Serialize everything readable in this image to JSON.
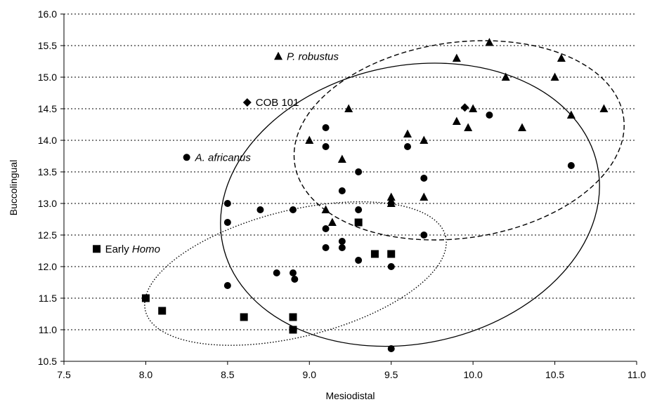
{
  "chart_data": {
    "type": "scatter",
    "xlabel": "Mesiodistal",
    "ylabel": "Buccolingual",
    "xlim": [
      7.5,
      11.0
    ],
    "ylim": [
      10.5,
      16.0
    ],
    "xticks": [
      "7.5",
      "8.0",
      "8.5",
      "9.0",
      "9.5",
      "10.0",
      "10.5",
      "11.0"
    ],
    "yticks": [
      "10.5",
      "11.0",
      "11.5",
      "12.0",
      "12.5",
      "13.0",
      "13.5",
      "14.0",
      "14.5",
      "15.0",
      "15.5",
      "16.0"
    ],
    "grid": "horizontal dotted",
    "legend_placement": "inside-left",
    "series": [
      {
        "name": "P. robustus",
        "legend_label_plain": "",
        "legend_label_italic": "P. robustus",
        "marker": "triangle",
        "x": [
          9.0,
          9.1,
          9.14,
          9.2,
          9.24,
          9.5,
          9.5,
          9.6,
          9.7,
          9.7,
          9.9,
          9.9,
          9.97,
          10.0,
          10.1,
          10.2,
          10.3,
          10.5,
          10.54,
          10.6,
          10.8
        ],
        "y": [
          14.0,
          12.9,
          12.7,
          13.7,
          14.5,
          13.1,
          13.0,
          14.1,
          14.0,
          13.1,
          15.3,
          14.3,
          14.2,
          14.5,
          15.55,
          15.0,
          14.2,
          15.0,
          15.3,
          14.4,
          14.5
        ]
      },
      {
        "name": "COB 101",
        "legend_label_plain": "COB 101",
        "legend_label_italic": "",
        "marker": "diamond",
        "x": [
          9.95
        ],
        "y": [
          14.52
        ]
      },
      {
        "name": "A. africanus",
        "legend_label_plain": "",
        "legend_label_italic": "A. africanus",
        "marker": "circle",
        "x": [
          8.5,
          8.5,
          8.5,
          8.7,
          8.8,
          8.9,
          8.9,
          8.91,
          9.1,
          9.1,
          9.1,
          9.1,
          9.2,
          9.2,
          9.2,
          9.3,
          9.3,
          9.3,
          9.5,
          9.5,
          9.5,
          9.6,
          9.7,
          9.7,
          10.1,
          10.6
        ],
        "y": [
          13.0,
          12.7,
          11.7,
          12.9,
          11.9,
          12.9,
          11.9,
          11.8,
          14.2,
          13.9,
          12.6,
          12.3,
          13.2,
          12.4,
          12.3,
          13.5,
          12.9,
          12.1,
          13.0,
          12.0,
          10.7,
          13.9,
          13.4,
          12.5,
          14.4,
          13.6
        ]
      },
      {
        "name": "Early Homo",
        "legend_label_plain": "Early ",
        "legend_label_italic": "Homo",
        "marker": "square",
        "x": [
          8.0,
          8.1,
          8.6,
          8.9,
          8.9,
          9.3,
          9.4,
          9.5
        ],
        "y": [
          11.5,
          11.3,
          11.2,
          11.2,
          11.0,
          12.7,
          12.2,
          12.2
        ]
      }
    ],
    "legend": [
      {
        "series": 0,
        "x": 8.81,
        "y": 15.33
      },
      {
        "series": 1,
        "x": 8.62,
        "y": 14.6
      },
      {
        "series": 2,
        "x": 8.25,
        "y": 13.73
      },
      {
        "series": 3,
        "x": 7.7,
        "y": 12.28
      }
    ],
    "ellipses": [
      {
        "name": "P. robustus range",
        "style": "dashed",
        "cx": 9.915,
        "cy": 14.0,
        "rx": 1.015,
        "ry": 1.55,
        "rotate_deg": -8
      },
      {
        "name": "A. africanus range",
        "style": "solid",
        "cx": 9.615,
        "cy": 12.98,
        "rx": 1.17,
        "ry": 2.2,
        "rotate_deg": -12
      },
      {
        "name": "Early Homo range",
        "style": "dotted",
        "cx": 8.915,
        "cy": 11.89,
        "rx": 0.945,
        "ry": 1.0,
        "rotate_deg": -14
      }
    ]
  }
}
